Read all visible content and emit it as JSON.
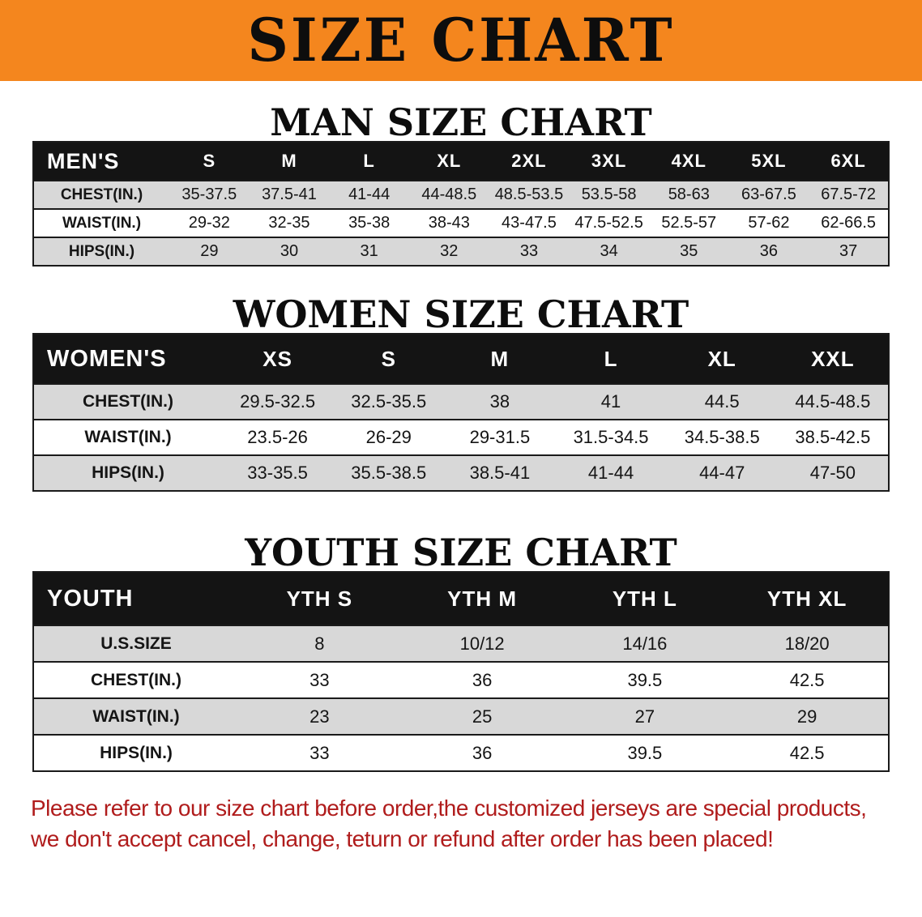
{
  "colors": {
    "banner-bg": "#f4861e",
    "header-bg": "#141414",
    "stripe": "#d8d8d8",
    "note": "#b01c1c"
  },
  "banner": {
    "title": "SIZE CHART"
  },
  "sections": [
    {
      "id": "men",
      "heading": "MAN SIZE CHART",
      "table": {
        "header": [
          "MEN'S",
          "S",
          "M",
          "L",
          "XL",
          "2XL",
          "3XL",
          "4XL",
          "5XL",
          "6XL"
        ],
        "rows": [
          [
            "CHEST(IN.)",
            "35-37.5",
            "37.5-41",
            "41-44",
            "44-48.5",
            "48.5-53.5",
            "53.5-58",
            "58-63",
            "63-67.5",
            "67.5-72"
          ],
          [
            "WAIST(IN.)",
            "29-32",
            "32-35",
            "35-38",
            "38-43",
            "43-47.5",
            "47.5-52.5",
            "52.5-57",
            "57-62",
            "62-66.5"
          ],
          [
            "HIPS(IN.)",
            "29",
            "30",
            "31",
            "32",
            "33",
            "34",
            "35",
            "36",
            "37"
          ]
        ]
      }
    },
    {
      "id": "women",
      "heading": "WOMEN SIZE CHART",
      "table": {
        "header": [
          "WOMEN'S",
          "XS",
          "S",
          "M",
          "L",
          "XL",
          "XXL"
        ],
        "rows": [
          [
            "CHEST(IN.)",
            "29.5-32.5",
            "32.5-35.5",
            "38",
            "41",
            "44.5",
            "44.5-48.5"
          ],
          [
            "WAIST(IN.)",
            "23.5-26",
            "26-29",
            "29-31.5",
            "31.5-34.5",
            "34.5-38.5",
            "38.5-42.5"
          ],
          [
            "HIPS(IN.)",
            "33-35.5",
            "35.5-38.5",
            "38.5-41",
            "41-44",
            "44-47",
            "47-50"
          ]
        ]
      }
    },
    {
      "id": "youth",
      "heading": "YOUTH SIZE CHART",
      "table": {
        "header": [
          "YOUTH",
          "YTH S",
          "YTH M",
          "YTH L",
          "YTH XL"
        ],
        "rows": [
          [
            "U.S.SIZE",
            "8",
            "10/12",
            "14/16",
            "18/20"
          ],
          [
            "CHEST(IN.)",
            "33",
            "36",
            "39.5",
            "42.5"
          ],
          [
            "WAIST(IN.)",
            "23",
            "25",
            "27",
            "29"
          ],
          [
            "HIPS(IN.)",
            "33",
            "36",
            "39.5",
            "42.5"
          ]
        ]
      }
    }
  ],
  "note": {
    "line1": "Please refer to our size chart before order,the customized jerseys are special products,",
    "line2": "we don't accept cancel, change, teturn or refund after order has been placed!"
  }
}
